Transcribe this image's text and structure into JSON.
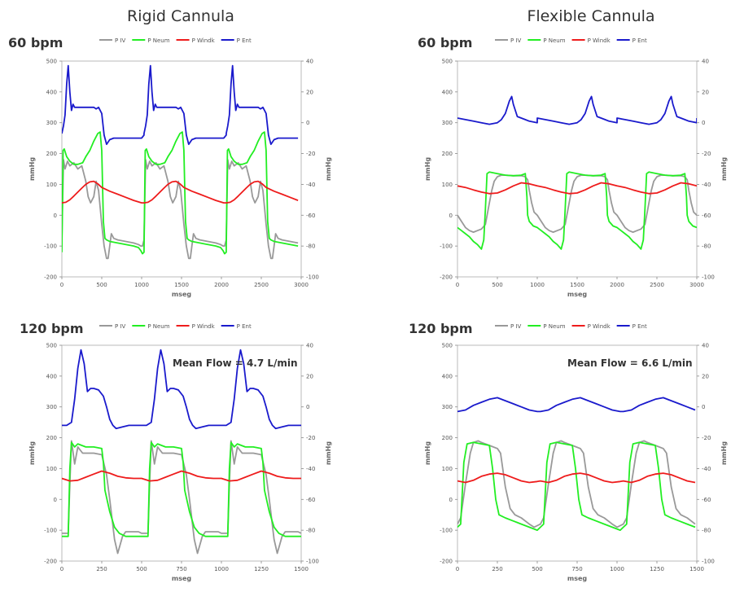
{
  "column_titles": [
    "Rigid Cannula",
    "Flexible Cannula"
  ],
  "series_colors": {
    "P IV": "#999999",
    "P Neum": "#22ee22",
    "P Windk": "#ee1c1c",
    "P Ent": "#1a1acc"
  },
  "chart_data": [
    {
      "type": "line",
      "title": "60 bpm",
      "column": "Rigid Cannula",
      "xlabel": "mseg",
      "ylabel": "mmHg",
      "y2label": "mmHg",
      "xlim": [
        0,
        3000
      ],
      "xticks": [
        0,
        500,
        1000,
        1500,
        2000,
        2500,
        3000
      ],
      "ylim": [
        -200,
        500
      ],
      "yticks": [
        -200,
        -100,
        0,
        100,
        200,
        300,
        400,
        500
      ],
      "y2lim": [
        -100,
        40
      ],
      "y2ticks": [
        -100,
        -80,
        -60,
        -40,
        -20,
        0,
        20,
        40
      ],
      "legend": [
        "P IV",
        "P Neum",
        "P Windk",
        "P Ent"
      ],
      "legend_position": "top",
      "period": 1030,
      "series": [
        {
          "name": "P IV",
          "axis": "left",
          "x": [
            0,
            20,
            40,
            70,
            100,
            150,
            200,
            250,
            300,
            330,
            360,
            400,
            430,
            460,
            500,
            530,
            560,
            580,
            600,
            620,
            650,
            700,
            800,
            900,
            960,
            990,
            1010,
            1030
          ],
          "y": [
            -80,
            180,
            150,
            175,
            160,
            170,
            150,
            160,
            110,
            60,
            40,
            60,
            110,
            80,
            -30,
            -100,
            -140,
            -140,
            -100,
            -60,
            -75,
            -80,
            -85,
            -90,
            -95,
            -100,
            -100,
            -80
          ]
        },
        {
          "name": "P Neum",
          "axis": "left",
          "x": [
            0,
            15,
            30,
            60,
            100,
            150,
            200,
            260,
            300,
            350,
            400,
            450,
            480,
            500,
            520,
            540,
            560,
            600,
            700,
            800,
            900,
            960,
            990,
            1010,
            1030
          ],
          "y": [
            -120,
            210,
            215,
            190,
            175,
            165,
            165,
            170,
            190,
            210,
            240,
            265,
            270,
            210,
            -20,
            -75,
            -80,
            -85,
            -90,
            -95,
            -100,
            -105,
            -115,
            -125,
            -120
          ]
        },
        {
          "name": "P Windk",
          "axis": "left",
          "x": [
            0,
            50,
            100,
            150,
            200,
            250,
            300,
            350,
            400,
            450,
            500,
            600,
            700,
            800,
            900,
            1000,
            1030
          ],
          "y": [
            40,
            42,
            50,
            62,
            75,
            88,
            100,
            108,
            110,
            102,
            90,
            78,
            68,
            58,
            48,
            40,
            40
          ]
        },
        {
          "name": "P Ent",
          "axis": "right",
          "x": [
            0,
            20,
            40,
            60,
            80,
            100,
            120,
            140,
            160,
            200,
            250,
            300,
            350,
            400,
            430,
            460,
            500,
            530,
            560,
            600,
            650,
            700,
            800,
            900,
            1000,
            1030
          ],
          "y": [
            -7,
            -2,
            5,
            25,
            37,
            20,
            8,
            12,
            10,
            10,
            10,
            10,
            10,
            10,
            9,
            10,
            6,
            -8,
            -14,
            -11,
            -10,
            -10,
            -10,
            -10,
            -10,
            -8
          ]
        }
      ]
    },
    {
      "type": "line",
      "title": "60 bpm",
      "column": "Flexible Cannula",
      "xlabel": "mseg",
      "ylabel": "mmHg",
      "y2label": "mmHg",
      "xlim": [
        0,
        3000
      ],
      "xticks": [
        0,
        500,
        1000,
        1500,
        2000,
        2500,
        3000
      ],
      "ylim": [
        -200,
        500
      ],
      "yticks": [
        -200,
        -100,
        0,
        100,
        200,
        300,
        400,
        500
      ],
      "y2lim": [
        -100,
        40
      ],
      "y2ticks": [
        -100,
        -80,
        -60,
        -40,
        -20,
        0,
        20,
        40
      ],
      "legend": [
        "P IV",
        "P Neum",
        "P Windk",
        "P Ent"
      ],
      "legend_position": "top",
      "period": 1000,
      "series": [
        {
          "name": "P IV",
          "axis": "left",
          "x": [
            0,
            50,
            100,
            150,
            200,
            250,
            300,
            350,
            400,
            430,
            460,
            500,
            550,
            600,
            700,
            800,
            850,
            880,
            900,
            930,
            960,
            1000
          ],
          "y": [
            0,
            -20,
            -40,
            -50,
            -55,
            -50,
            -45,
            -30,
            40,
            80,
            110,
            125,
            130,
            130,
            128,
            128,
            125,
            115,
            80,
            40,
            10,
            0
          ]
        },
        {
          "name": "P Neum",
          "axis": "left",
          "x": [
            0,
            50,
            100,
            150,
            200,
            250,
            300,
            330,
            350,
            370,
            400,
            500,
            600,
            700,
            800,
            850,
            870,
            880,
            900,
            950,
            1000
          ],
          "y": [
            -40,
            -50,
            -60,
            -70,
            -85,
            -95,
            -110,
            -80,
            20,
            135,
            140,
            135,
            130,
            128,
            130,
            135,
            60,
            0,
            -20,
            -35,
            -40
          ]
        },
        {
          "name": "P Windk",
          "axis": "left",
          "x": [
            0,
            100,
            200,
            300,
            400,
            500,
            600,
            700,
            800,
            900,
            1000
          ],
          "y": [
            95,
            90,
            82,
            75,
            70,
            72,
            82,
            95,
            105,
            102,
            95
          ]
        },
        {
          "name": "P Ent",
          "axis": "right",
          "x": [
            0,
            100,
            200,
            300,
            400,
            500,
            550,
            600,
            650,
            680,
            700,
            750,
            800,
            850,
            900,
            1000
          ],
          "y": [
            3,
            2,
            1,
            0,
            -1,
            0,
            2,
            6,
            14,
            17,
            12,
            4,
            3,
            2,
            1,
            0
          ]
        }
      ]
    },
    {
      "type": "line",
      "title": "120 bpm",
      "column": "Rigid Cannula",
      "annotation": "Mean Flow = 4.7 L/min",
      "xlabel": "mseg",
      "ylabel": "mmHg",
      "y2label": "mmHg",
      "xlim": [
        0,
        1500
      ],
      "xticks": [
        0,
        250,
        500,
        750,
        1000,
        1250,
        1500
      ],
      "ylim": [
        -200,
        500
      ],
      "yticks": [
        -200,
        -100,
        0,
        100,
        200,
        300,
        400,
        500
      ],
      "y2lim": [
        -100,
        40
      ],
      "y2ticks": [
        -100,
        -80,
        -60,
        -40,
        -20,
        0,
        20,
        40
      ],
      "legend": [
        "P IV",
        "P Neum",
        "P Windk",
        "P Ent"
      ],
      "legend_position": "top",
      "period": 500,
      "series": [
        {
          "name": "P IV",
          "axis": "left",
          "x": [
            0,
            40,
            50,
            60,
            80,
            100,
            130,
            150,
            200,
            250,
            280,
            300,
            330,
            350,
            380,
            400,
            450,
            480,
            500
          ],
          "y": [
            -110,
            -110,
            50,
            190,
            115,
            170,
            150,
            150,
            150,
            145,
            80,
            0,
            -130,
            -175,
            -120,
            -105,
            -105,
            -105,
            -110
          ]
        },
        {
          "name": "P Neum",
          "axis": "left",
          "x": [
            0,
            40,
            50,
            60,
            80,
            100,
            150,
            200,
            250,
            260,
            270,
            300,
            330,
            360,
            400,
            450,
            500
          ],
          "y": [
            -120,
            -120,
            100,
            185,
            170,
            180,
            170,
            170,
            165,
            120,
            30,
            -40,
            -90,
            -110,
            -120,
            -120,
            -120
          ]
        },
        {
          "name": "P Windk",
          "axis": "left",
          "x": [
            0,
            50,
            100,
            150,
            200,
            250,
            300,
            350,
            400,
            450,
            500
          ],
          "y": [
            68,
            60,
            62,
            72,
            82,
            92,
            85,
            75,
            70,
            68,
            68
          ]
        },
        {
          "name": "P Ent",
          "axis": "right",
          "x": [
            0,
            30,
            60,
            80,
            100,
            120,
            140,
            160,
            180,
            200,
            230,
            260,
            280,
            300,
            320,
            340,
            380,
            420,
            460,
            500
          ],
          "y": [
            -12,
            -12,
            -10,
            5,
            25,
            37,
            28,
            10,
            12,
            12,
            11,
            7,
            0,
            -8,
            -12,
            -14,
            -13,
            -12,
            -12,
            -12
          ]
        }
      ]
    },
    {
      "type": "line",
      "title": "120 bpm",
      "column": "Flexible Cannula",
      "annotation": "Mean Flow = 6.6 L/min",
      "xlabel": "mseg",
      "ylabel": "mmHg",
      "y2label": "mmHg",
      "xlim": [
        0,
        1500
      ],
      "xticks": [
        0,
        250,
        500,
        750,
        1000,
        1250,
        1500
      ],
      "ylim": [
        -200,
        500
      ],
      "yticks": [
        -200,
        -100,
        0,
        100,
        200,
        300,
        400,
        500
      ],
      "y2lim": [
        -100,
        40
      ],
      "y2ticks": [
        -100,
        -80,
        -60,
        -40,
        -20,
        0,
        20,
        40
      ],
      "legend": [
        "P IV",
        "P Neum",
        "P Windk",
        "P Ent"
      ],
      "legend_position": "top",
      "period": 520,
      "series": [
        {
          "name": "P IV",
          "axis": "left",
          "x": [
            0,
            20,
            50,
            80,
            100,
            130,
            150,
            200,
            250,
            270,
            300,
            330,
            360,
            400,
            450,
            480,
            500,
            520
          ],
          "y": [
            -80,
            -60,
            50,
            150,
            185,
            190,
            185,
            175,
            165,
            150,
            40,
            -30,
            -50,
            -60,
            -80,
            -90,
            -85,
            -80
          ]
        },
        {
          "name": "P Neum",
          "axis": "left",
          "x": [
            0,
            20,
            40,
            60,
            100,
            150,
            200,
            220,
            240,
            260,
            300,
            350,
            400,
            450,
            500,
            520
          ],
          "y": [
            -90,
            -80,
            120,
            180,
            185,
            180,
            175,
            100,
            0,
            -50,
            -60,
            -70,
            -80,
            -90,
            -100,
            -90
          ]
        },
        {
          "name": "P Windk",
          "axis": "left",
          "x": [
            0,
            50,
            100,
            150,
            200,
            250,
            300,
            350,
            400,
            450,
            500,
            520
          ],
          "y": [
            60,
            55,
            62,
            75,
            82,
            85,
            80,
            70,
            60,
            55,
            58,
            60
          ]
        },
        {
          "name": "P Ent",
          "axis": "right",
          "x": [
            0,
            50,
            100,
            150,
            200,
            250,
            300,
            350,
            400,
            450,
            500,
            520
          ],
          "y": [
            -3,
            -2,
            1,
            3,
            5,
            6,
            4,
            2,
            0,
            -2,
            -3,
            -3
          ]
        }
      ]
    }
  ]
}
